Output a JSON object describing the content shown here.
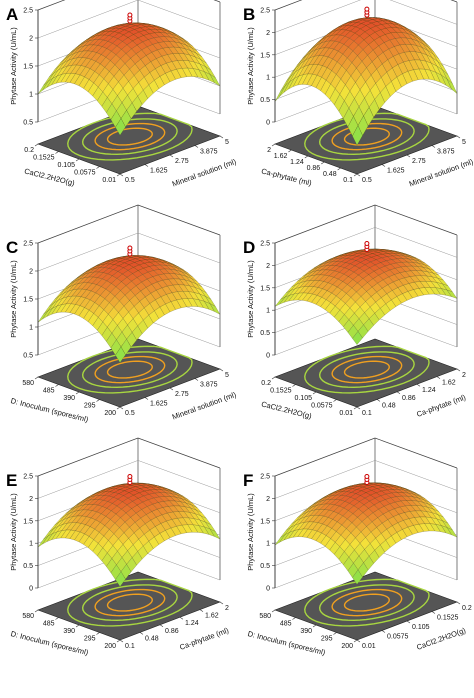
{
  "figure": {
    "panels_layout": "3 rows x 2 columns",
    "surface_colors": {
      "low": "#7fe04a",
      "mid": "#f4e23a",
      "high": "#e2502a"
    },
    "floor_color": "#555555",
    "contour_colors": {
      "inner": "#f0a020",
      "outer": "#a8d640"
    }
  },
  "chart_data": [
    {
      "panel": "A",
      "type": "surface",
      "zlabel": "Phytase Activity (U/mL)",
      "zticks": [
        "0.5",
        "1",
        "1.5",
        "2",
        "2.5"
      ],
      "zlim": [
        0.5,
        2.5
      ],
      "xlabel": "Mineral solution (ml)",
      "xticks": [
        "0.5",
        "1.625",
        "2.75",
        "3.875",
        "5"
      ],
      "ylabel": "CaCl2.2H2O(g)",
      "yticks": [
        "0.01",
        "0.0575",
        "0.105",
        "0.1525",
        "0.2"
      ],
      "peak": 2.05,
      "edge_min": 0.8
    },
    {
      "panel": "B",
      "type": "surface",
      "zlabel": "Phytase Activity (U/mL)",
      "zticks": [
        "0",
        "0.5",
        "1",
        "1.5",
        "2",
        "2.5"
      ],
      "zlim": [
        0,
        2.5
      ],
      "xlabel": "Mineral solution (ml)",
      "xticks": [
        "0.5",
        "1.625",
        "2.75",
        "3.875",
        "5"
      ],
      "ylabel": "Ca-phytate (ml)",
      "yticks": [
        "0.1",
        "0.48",
        "0.86",
        "1.24",
        "1.62",
        "2"
      ],
      "peak": 2.08,
      "edge_min": 0.15
    },
    {
      "panel": "C",
      "type": "surface",
      "zlabel": "Phytase Activity (U/mL)",
      "zticks": [
        "0.5",
        "1",
        "1.5",
        "2",
        "2.5"
      ],
      "zlim": [
        0.5,
        2.5
      ],
      "xlabel": "Mineral solution (ml)",
      "xticks": [
        "0.5",
        "1.625",
        "2.75",
        "3.875",
        "5"
      ],
      "ylabel": "D: Inoculum (spores/ml)",
      "yticks": [
        "200",
        "295",
        "390",
        "485",
        "580"
      ],
      "peak": 2.05,
      "edge_min": 0.9
    },
    {
      "panel": "D",
      "type": "surface",
      "zlabel": "Phytase Activity (U/mL)",
      "zticks": [
        "0",
        "0.5",
        "1",
        "1.5",
        "2",
        "2.5"
      ],
      "zlim": [
        0,
        2.5
      ],
      "xlabel": "Ca-phytate (ml)",
      "xticks": [
        "0.1",
        "0.48",
        "0.86",
        "1.24",
        "1.62",
        "2"
      ],
      "ylabel": "CaCl2.2H2O(g)",
      "yticks": [
        "0.01",
        "0.0575",
        "0.105",
        "0.1525",
        "0.2"
      ],
      "peak": 2.05,
      "edge_min": 0.9
    },
    {
      "panel": "E",
      "type": "surface",
      "zlabel": "Phytase Activity (U/mL)",
      "zticks": [
        "0",
        "0.5",
        "1",
        "1.5",
        "2",
        "2.5"
      ],
      "zlim": [
        0,
        2.5
      ],
      "xlabel": "Ca-phytate (ml)",
      "xticks": [
        "0.1",
        "0.48",
        "0.86",
        "1.24",
        "1.62",
        "2"
      ],
      "ylabel": "D: Inoculum (spores/ml)",
      "yticks": [
        "200",
        "295",
        "390",
        "485",
        "580"
      ],
      "peak": 2.05,
      "edge_min": 0.7
    },
    {
      "panel": "F",
      "type": "surface",
      "zlabel": "Phytase Activity (U/mL)",
      "zticks": [
        "0",
        "0.5",
        "1",
        "1.5",
        "2",
        "2.5"
      ],
      "zlim": [
        0,
        2.5
      ],
      "xlabel": "CaCl2.2H2O(g)",
      "xticks": [
        "0.01",
        "0.0575",
        "0.105",
        "0.1525",
        "0.2"
      ],
      "ylabel": "D: Inoculum (spores/ml)",
      "yticks": [
        "200",
        "295",
        "390",
        "485",
        "580"
      ],
      "peak": 2.05,
      "edge_min": 0.75
    }
  ]
}
